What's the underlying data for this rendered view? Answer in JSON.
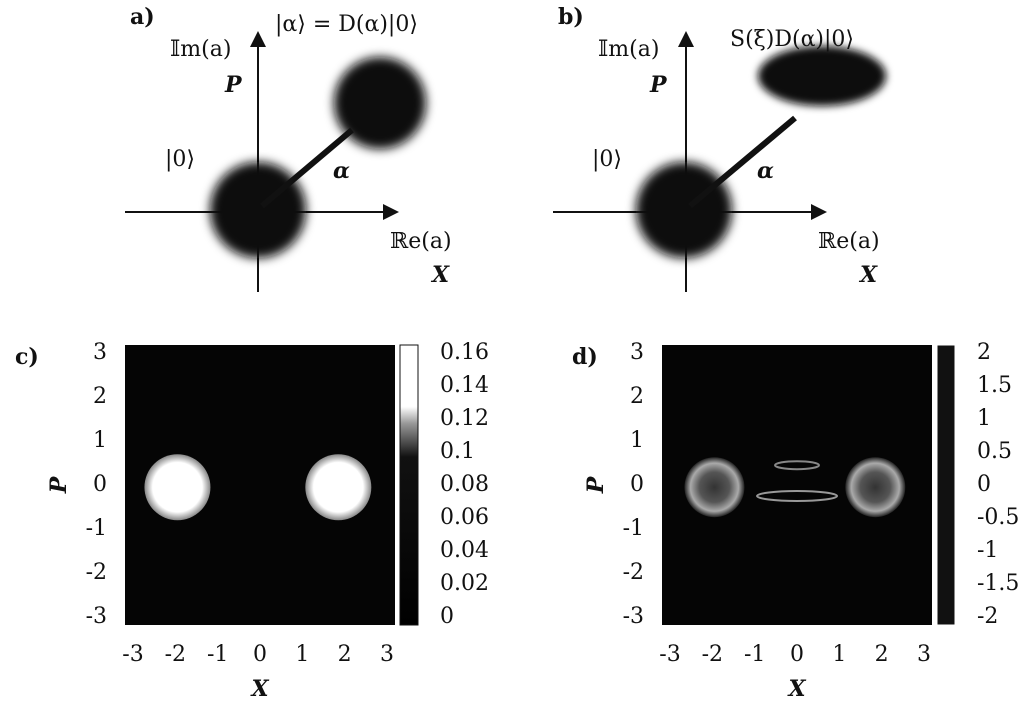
{
  "panels": [
    {
      "label": "a)",
      "title": "|α⟩ = D(α)|0⟩",
      "y_axis": "𝕀m(a)",
      "y_var": "P",
      "origin": "|0⟩",
      "arrow": "α",
      "x_axis": "ℝe(a)",
      "x_var": "X"
    },
    {
      "label": "b)",
      "title": "S(ξ)D(α)|0⟩",
      "y_axis": "𝕀m(a)",
      "y_var": "P",
      "origin": "|0⟩",
      "arrow": "α",
      "x_axis": "ℝe(a)",
      "x_var": "X"
    },
    {
      "label": "c)",
      "x_label": "X",
      "y_label": "P",
      "xticks": [
        -3,
        -2,
        -1,
        0,
        1,
        2,
        3
      ],
      "yticks": [
        -3,
        -2,
        -1,
        0,
        1,
        2,
        3
      ],
      "colorbar_ticks": [
        0,
        0.02,
        0.04,
        0.06,
        0.08,
        0.1,
        0.12,
        0.14,
        0.16
      ]
    },
    {
      "label": "d)",
      "x_label": "X",
      "y_label": "P",
      "xticks": [
        -3,
        -2,
        -1,
        0,
        1,
        2,
        3
      ],
      "yticks": [
        -3,
        -2,
        -1,
        0,
        1,
        2,
        3
      ],
      "colorbar_ticks": [
        -2,
        -1.5,
        -1,
        -0.5,
        0,
        0.5,
        1,
        1.5,
        2
      ]
    }
  ]
}
